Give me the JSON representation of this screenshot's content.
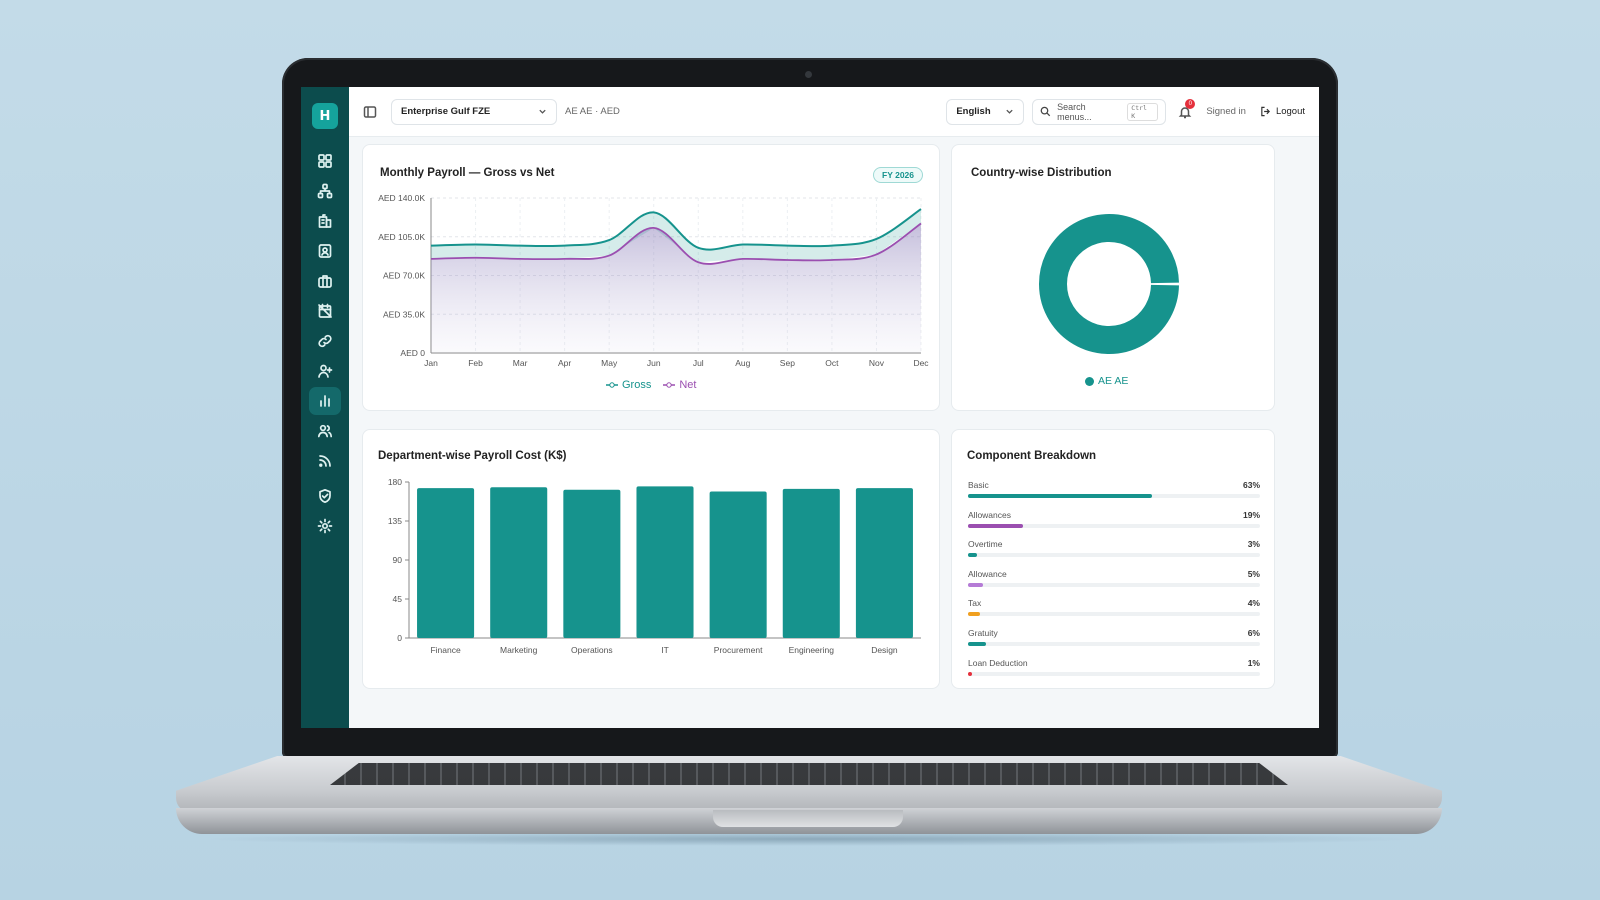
{
  "header": {
    "company": "Enterprise Gulf FZE",
    "country_label": "AE AE · AED",
    "language": "English",
    "search_placeholder": "Search menus...",
    "search_shortcut": "Ctrl K",
    "notification_count": "0",
    "signed_in": "Signed in",
    "logout": "Logout"
  },
  "sidebar": {
    "logo_letter": "H",
    "items": [
      {
        "icon": "dashboard-icon"
      },
      {
        "icon": "org-chart-icon"
      },
      {
        "icon": "building-icon"
      },
      {
        "icon": "contact-card-icon"
      },
      {
        "icon": "briefcase-icon"
      },
      {
        "icon": "calendar-off-icon"
      },
      {
        "icon": "link-icon"
      },
      {
        "icon": "user-plus-icon"
      },
      {
        "icon": "bar-chart-icon",
        "active": true
      },
      {
        "icon": "users-icon"
      },
      {
        "icon": "rss-icon"
      },
      {
        "icon": "shield-check-icon"
      },
      {
        "icon": "settings-icon"
      }
    ]
  },
  "payroll_chart": {
    "title": "Monthly Payroll — Gross vs Net",
    "badge": "FY 2026",
    "legend_gross": "Gross",
    "legend_net": "Net"
  },
  "country_chart": {
    "title": "Country-wise Distribution",
    "legend_label": "AE AE"
  },
  "dept_chart": {
    "title": "Department-wise Payroll Cost (K$)"
  },
  "components": {
    "title": "Component Breakdown",
    "items": [
      {
        "label": "Basic",
        "pct": "63%",
        "value": 63,
        "color": "#16938d"
      },
      {
        "label": "Allowances",
        "pct": "19%",
        "value": 19,
        "color": "#9b4fb0"
      },
      {
        "label": "Overtime",
        "pct": "3%",
        "value": 3,
        "color": "#16938d"
      },
      {
        "label": "Allowance",
        "pct": "5%",
        "value": 5,
        "color": "#b57bd6"
      },
      {
        "label": "Tax",
        "pct": "4%",
        "value": 4,
        "color": "#f0a020"
      },
      {
        "label": "Gratuity",
        "pct": "6%",
        "value": 6,
        "color": "#16938d"
      },
      {
        "label": "Loan Deduction",
        "pct": "1%",
        "value": 1,
        "color": "#e5303c"
      }
    ]
  },
  "colors": {
    "teal": "#16938d",
    "purple": "#9b4fb0",
    "sidebar": "#0c4c4d"
  },
  "chart_data": [
    {
      "type": "area",
      "title": "Monthly Payroll — Gross vs Net",
      "categories": [
        "Jan",
        "Feb",
        "Mar",
        "Apr",
        "May",
        "Jun",
        "Jul",
        "Aug",
        "Sep",
        "Oct",
        "Nov",
        "Dec"
      ],
      "series": [
        {
          "name": "Gross",
          "values": [
            97,
            98,
            97,
            97,
            102,
            127,
            95,
            98,
            97,
            97,
            103,
            130
          ]
        },
        {
          "name": "Net",
          "values": [
            85,
            86,
            85,
            85,
            88,
            113,
            82,
            85,
            84,
            84,
            89,
            117
          ]
        }
      ],
      "ylim": [
        0,
        140
      ],
      "yticks": [
        "AED 0",
        "AED 35.0K",
        "AED 70.0K",
        "AED 105.0K",
        "AED 140.0K"
      ],
      "ytick_values": [
        0,
        35,
        70,
        105,
        140
      ],
      "grid": true,
      "legend": "bottom"
    },
    {
      "type": "pie",
      "title": "Country-wise Distribution",
      "categories": [
        "AE AE"
      ],
      "values": [
        100
      ],
      "legend": "bottom"
    },
    {
      "type": "bar",
      "title": "Department-wise Payroll Cost (K$)",
      "categories": [
        "Finance",
        "Marketing",
        "Operations",
        "IT",
        "Procurement",
        "Engineering",
        "Design"
      ],
      "values": [
        173,
        174,
        171,
        175,
        169,
        172,
        173
      ],
      "ylim": [
        0,
        180
      ],
      "yticks": [
        "0",
        "45",
        "90",
        "135",
        "180"
      ],
      "ytick_values": [
        0,
        45,
        90,
        135,
        180
      ]
    }
  ]
}
